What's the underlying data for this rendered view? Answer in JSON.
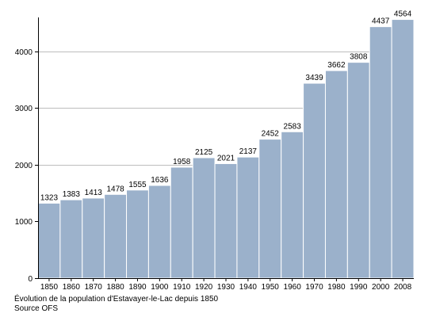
{
  "chart_data": {
    "type": "bar",
    "categories": [
      "1850",
      "1860",
      "1870",
      "1880",
      "1890",
      "1900",
      "1910",
      "1920",
      "1930",
      "1940",
      "1950",
      "1960",
      "1970",
      "1980",
      "1990",
      "2000",
      "2008"
    ],
    "values": [
      1323,
      1383,
      1413,
      1478,
      1555,
      1636,
      1958,
      2125,
      2021,
      2137,
      2452,
      2583,
      3439,
      3662,
      3808,
      4437,
      4564
    ],
    "title": "",
    "xlabel": "",
    "ylabel": "",
    "ylim": [
      0,
      4600
    ],
    "yticks": [
      0,
      1000,
      2000,
      3000,
      4000
    ],
    "grid": true,
    "data_labels": true,
    "colors": {
      "bar": "#9bb1cb",
      "bar_edge": "#ffffff",
      "grid": "#bdbdbd",
      "axis": "#000000"
    }
  },
  "caption": {
    "line1": "Évolution de la population d'Estavayer-le-Lac depuis 1850",
    "line2": "Source OFS"
  }
}
